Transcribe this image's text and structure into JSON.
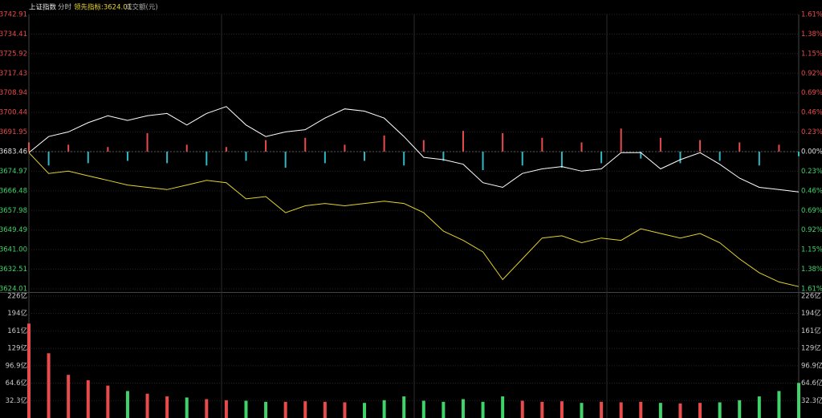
{
  "header": {
    "index_name": "上证指数",
    "mode": "分时",
    "leading": "领先指标:3624.01",
    "volume_title": "成交额(元)"
  },
  "chart_data": [
    {
      "type": "line",
      "ylim": [
        3624.01,
        3742.91
      ],
      "yticks": [
        3742.91,
        3734.41,
        3725.92,
        3717.43,
        3708.94,
        3700.44,
        3691.95,
        3683.46,
        3674.97,
        3666.48,
        3657.98,
        3649.49,
        {
          "value": 3641,
          "label": "3641.00"
        },
        3632.51,
        3624.01
      ],
      "y2lim": [
        -1.61,
        1.61
      ],
      "y2ticks": [
        {
          "value": 1.61,
          "label": "1.61%"
        },
        {
          "value": 1.38,
          "label": "1.38%"
        },
        {
          "value": 1.15,
          "label": "1.15%"
        },
        {
          "value": 0.92,
          "label": "0.92%"
        },
        {
          "value": 0.69,
          "label": "0.69%"
        },
        {
          "value": 0.46,
          "label": "0.46%"
        },
        {
          "value": 0.23,
          "label": "0.23%"
        },
        {
          "value": 0,
          "label": "0.00%"
        },
        {
          "value": -0.23,
          "label": "0.23%"
        },
        {
          "value": -0.46,
          "label": "0.46%"
        },
        {
          "value": -0.69,
          "label": "0.69%"
        },
        {
          "value": -0.92,
          "label": "0.92%"
        },
        {
          "value": -1.15,
          "label": "1.15%"
        },
        {
          "value": -1.38,
          "label": "1.38%"
        },
        {
          "value": -1.61,
          "label": "1.61%"
        }
      ],
      "baseline": 3683.46,
      "up_color": "#e84b4b",
      "down_color": "#2fb8c4",
      "flat_color": "#e0e0e0",
      "down_label_color": "#3fd36a",
      "series": [
        {
          "color": "#ffffff",
          "values": [
            3683,
            3690,
            3692,
            3696,
            3699,
            3697,
            3699,
            3700,
            3695,
            3700,
            3703,
            3695,
            3690,
            3692,
            3693,
            3698,
            3702,
            3701,
            3698,
            3690,
            3681,
            3680,
            3678,
            3670,
            3668,
            3674,
            3676,
            3677,
            3675,
            3676,
            3683,
            3683,
            3676,
            3680,
            3683,
            3678,
            3672,
            3668,
            3667,
            3666
          ]
        },
        {
          "color": "#e5d32c",
          "values": [
            3683,
            3674,
            3675,
            3673,
            3671,
            3669,
            3668,
            3667,
            3669,
            3671,
            3670,
            3663,
            3664,
            3657,
            3660,
            3661,
            3660,
            3661,
            3662,
            3661,
            3657,
            3649,
            3645,
            3640,
            3628,
            3637,
            3646,
            3647,
            3644,
            3646,
            3645,
            3650,
            3648,
            3646,
            3648,
            3644,
            3637,
            3631,
            3627,
            3625
          ]
        }
      ],
      "histogram": [
        4,
        -6,
        3,
        -5,
        2,
        -4,
        8,
        -5,
        3,
        -6,
        2,
        -4,
        5,
        -7,
        6,
        -5,
        3,
        -4,
        7,
        -6,
        5,
        -4,
        9,
        -8,
        8,
        -6,
        6,
        -7,
        4,
        -5,
        10,
        -3,
        6,
        -5,
        5,
        -4,
        4,
        -6,
        3,
        -2
      ]
    },
    {
      "type": "bar",
      "ylim": [
        0,
        226
      ],
      "yticks": [
        {
          "value": 226,
          "label": "226亿"
        },
        {
          "value": 194,
          "label": "194亿"
        },
        {
          "value": 161,
          "label": "161亿"
        },
        {
          "value": 129,
          "label": "129亿"
        },
        {
          "value": 96.9,
          "label": "96.9亿"
        },
        {
          "value": 64.6,
          "label": "64.6亿"
        },
        {
          "value": 32.3,
          "label": "32.3亿"
        }
      ],
      "up_color": "#e84b4b",
      "down_color": "#3fd36a",
      "values": [
        175,
        120,
        80,
        70,
        60,
        50,
        45,
        40,
        38,
        35,
        33,
        32,
        30,
        30,
        31,
        30,
        29,
        28,
        33,
        40,
        32,
        30,
        35,
        30,
        40,
        32,
        30,
        31,
        28,
        30,
        29,
        30,
        28,
        27,
        28,
        29,
        33,
        40,
        50,
        65
      ]
    }
  ]
}
